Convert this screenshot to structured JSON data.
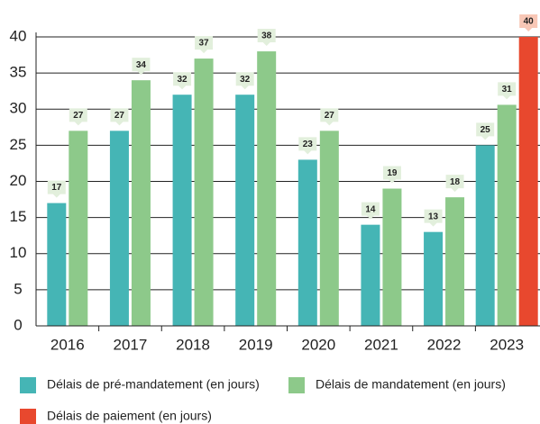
{
  "chart_data": {
    "type": "bar",
    "categories": [
      "2016",
      "2017",
      "2018",
      "2019",
      "2020",
      "2021",
      "2022",
      "2023"
    ],
    "series": [
      {
        "name": "Délais de pré-mandatement (en jours)",
        "color": "#45b5b5",
        "values": [
          17,
          27,
          32,
          32,
          23,
          14,
          13,
          25
        ]
      },
      {
        "name": "Délais de mandatement (en jours)",
        "color": "#8dc98a",
        "values": [
          27,
          34,
          37,
          38,
          27,
          19,
          17.8,
          30.6
        ],
        "value_labels": [
          "27",
          "34",
          "37",
          "38",
          "27",
          "19",
          "18",
          "31"
        ]
      },
      {
        "name": "Délais de paiement (en jours)",
        "color": "#e8482e",
        "values": [
          null,
          null,
          null,
          null,
          null,
          null,
          null,
          40
        ]
      }
    ],
    "ylim": [
      0,
      40
    ],
    "yticks": [
      0,
      5,
      10,
      15,
      20,
      25,
      30,
      35,
      40
    ],
    "grid": true
  }
}
